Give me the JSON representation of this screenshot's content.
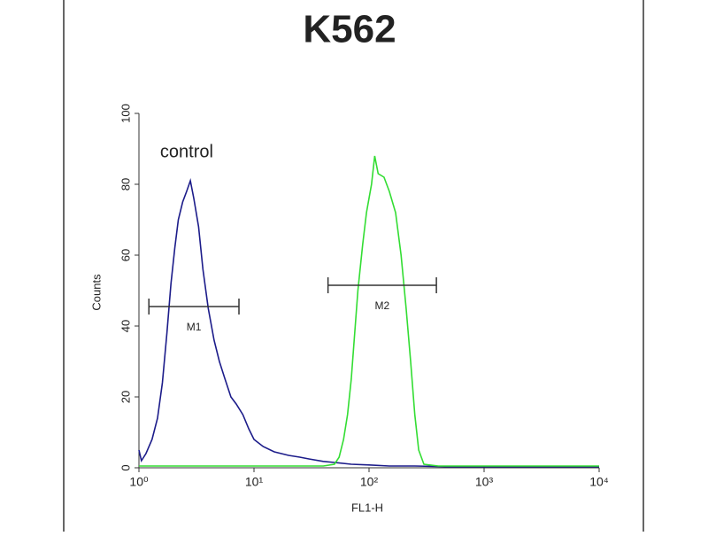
{
  "chart_data": {
    "type": "line",
    "title": "K562",
    "xlabel": "FL1-H",
    "ylabel": "Counts",
    "xscale": "log",
    "xlim": [
      1,
      10000
    ],
    "ylim": [
      0,
      100
    ],
    "xticks": [
      {
        "value": 1,
        "label": "10⁰"
      },
      {
        "value": 10,
        "label": "10¹"
      },
      {
        "value": 100,
        "label": "10²"
      },
      {
        "value": 1000,
        "label": "10³"
      },
      {
        "value": 10000,
        "label": "10⁴"
      }
    ],
    "yticks": [
      0,
      20,
      40,
      60,
      80,
      100
    ],
    "annotations": [
      {
        "text": "control",
        "x": 2.6,
        "y": 89
      }
    ],
    "markers": [
      {
        "label": "M1",
        "x": [
          1.22,
          7.4
        ],
        "y": 45.5
      },
      {
        "label": "M2",
        "x": [
          44,
          385
        ],
        "y": 51.5
      }
    ],
    "series": [
      {
        "color": "#1c1c8a",
        "x": [
          1,
          1.05,
          1.15,
          1.3,
          1.45,
          1.6,
          1.75,
          1.9,
          2.05,
          2.2,
          2.4,
          2.6,
          2.8,
          3,
          3.3,
          3.6,
          4,
          4.5,
          5,
          5.6,
          6.3,
          7,
          8,
          9,
          10,
          12,
          15,
          20,
          25,
          30,
          40,
          50,
          70,
          100,
          150,
          250,
          500,
          10000
        ],
        "values": [
          5,
          2,
          4,
          8,
          14,
          24,
          38,
          52,
          62,
          70,
          75,
          78,
          81,
          76,
          68,
          56,
          45,
          36,
          30,
          25,
          20,
          18,
          15,
          11,
          8,
          6,
          4.5,
          3.5,
          3,
          2.5,
          1.8,
          1.5,
          1,
          0.8,
          0.5,
          0.5,
          0.3,
          0.3
        ]
      },
      {
        "color": "#33dd33",
        "x": [
          1,
          10,
          40,
          50,
          55,
          60,
          65,
          70,
          75,
          80,
          88,
          95,
          105,
          112,
          120,
          135,
          150,
          170,
          190,
          210,
          230,
          250,
          270,
          300,
          400,
          10000
        ],
        "values": [
          0.5,
          0.5,
          0.5,
          1,
          3,
          8,
          15,
          25,
          38,
          50,
          63,
          72,
          80,
          88,
          83,
          82,
          78,
          72,
          60,
          45,
          30,
          15,
          5,
          1,
          0.5,
          0.5
        ]
      }
    ]
  }
}
